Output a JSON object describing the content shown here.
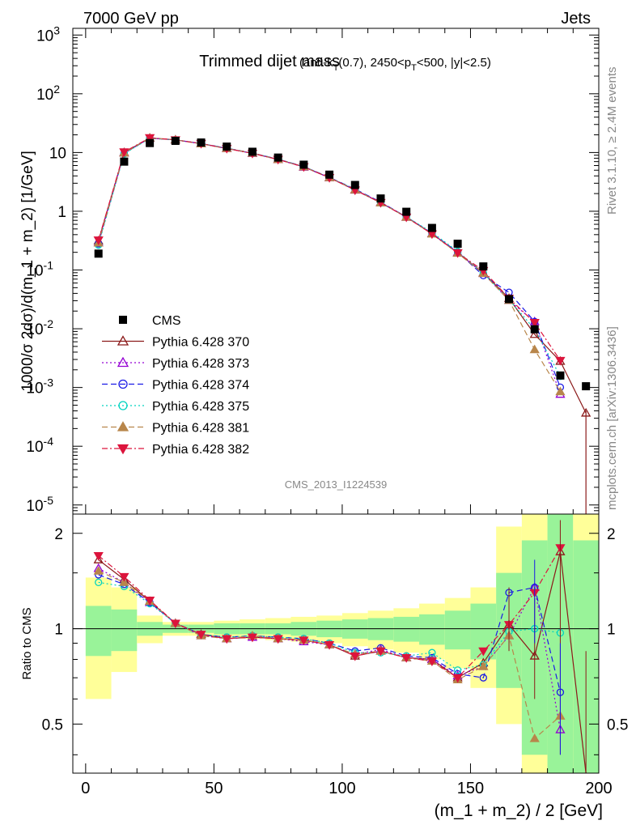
{
  "header": {
    "left": "7000 GeV pp",
    "right": "Jets",
    "side_top": "Rivet 3.1.10, ≥ 2.4M events",
    "side_bottom": "mcplots.cern.ch [arXiv:1306.3436]"
  },
  "chart_data": {
    "type": "line",
    "title_main": "Trimmed dijet mass",
    "title_sub": "(anti-kT(0.7), 2450<pT<500, |y|<2.5)",
    "watermark": "CMS_2013_I1224539",
    "xlabel": "(m_1 + m_2) / 2 [GeV]",
    "ylabel": "1000/σ 2dσ)/d(m_1 + m_2) [1/GeV]",
    "ratio_ylabel": "Ratio to CMS",
    "xlim": [
      -5,
      200
    ],
    "ylim": [
      7e-06,
      1300
    ],
    "ylog": true,
    "ratio_ylim": [
      0.35,
      2.3
    ],
    "x_ticks": [
      "0",
      "50",
      "100",
      "150",
      "200"
    ],
    "y_ticks": [
      "10^3",
      "10^2",
      "10",
      "1",
      "10^-1",
      "10^-2",
      "10^-3",
      "10^-4",
      "10^-5"
    ],
    "ratio_ticks": [
      "0.5",
      "1",
      "2"
    ],
    "legend_position": "left-middle",
    "x": [
      5,
      15,
      25,
      35,
      45,
      55,
      65,
      75,
      85,
      95,
      105,
      115,
      125,
      135,
      145,
      155,
      165,
      175,
      185,
      195
    ],
    "data": {
      "name": "CMS",
      "values": [
        0.19,
        7.0,
        14.5,
        15.8,
        14.8,
        12.6,
        10.3,
        8.2,
        6.2,
        4.2,
        2.8,
        1.65,
        0.98,
        0.52,
        0.28,
        0.115,
        0.032,
        0.0098,
        0.0016,
        0.00105
      ]
    },
    "band_inner": [
      [
        0.82,
        1.18
      ],
      [
        0.85,
        1.15
      ],
      [
        0.95,
        1.05
      ],
      [
        0.97,
        1.03
      ],
      [
        0.97,
        1.03
      ],
      [
        0.96,
        1.04
      ],
      [
        0.96,
        1.04
      ],
      [
        0.96,
        1.04
      ],
      [
        0.95,
        1.05
      ],
      [
        0.94,
        1.06
      ],
      [
        0.93,
        1.07
      ],
      [
        0.92,
        1.08
      ],
      [
        0.91,
        1.09
      ],
      [
        0.89,
        1.11
      ],
      [
        0.86,
        1.14
      ],
      [
        0.8,
        1.2
      ],
      [
        0.65,
        1.5
      ],
      [
        0.4,
        1.9
      ],
      [
        0.35,
        2.3
      ],
      [
        0.35,
        1.9
      ]
    ],
    "band_outer": [
      [
        0.6,
        1.45
      ],
      [
        0.73,
        1.35
      ],
      [
        0.9,
        1.1
      ],
      [
        0.95,
        1.05
      ],
      [
        0.95,
        1.05
      ],
      [
        0.94,
        1.06
      ],
      [
        0.93,
        1.07
      ],
      [
        0.92,
        1.08
      ],
      [
        0.91,
        1.09
      ],
      [
        0.9,
        1.1
      ],
      [
        0.88,
        1.12
      ],
      [
        0.86,
        1.14
      ],
      [
        0.84,
        1.16
      ],
      [
        0.8,
        1.2
      ],
      [
        0.75,
        1.25
      ],
      [
        0.65,
        1.35
      ],
      [
        0.5,
        2.1
      ],
      [
        0.35,
        2.3
      ],
      [
        0.35,
        2.3
      ],
      [
        0.35,
        2.3
      ]
    ],
    "series": [
      {
        "name": "Pythia 6.428 370",
        "color": "#8b1a1a",
        "dash": "",
        "marker": "tri-up-open",
        "ratio": [
          1.65,
          1.43,
          1.22,
          1.04,
          0.96,
          0.93,
          0.94,
          0.93,
          0.92,
          0.89,
          0.82,
          0.85,
          0.81,
          0.8,
          0.7,
          0.78,
          1.03,
          0.82,
          1.75,
          0.35
        ]
      },
      {
        "name": "Pythia 6.428 373",
        "color": "#9400d3",
        "dash": "2,3",
        "marker": "tri-up-open",
        "ratio": [
          1.55,
          1.4,
          1.21,
          1.04,
          0.95,
          0.93,
          0.94,
          0.93,
          0.91,
          0.89,
          0.83,
          0.86,
          0.81,
          0.8,
          0.71,
          0.76,
          0.95,
          1.35,
          0.48,
          null
        ]
      },
      {
        "name": "Pythia 6.428 374",
        "color": "#1a1ae6",
        "dash": "7,4",
        "marker": "circle-open",
        "ratio": [
          1.48,
          1.38,
          1.21,
          1.04,
          0.96,
          0.94,
          0.95,
          0.94,
          0.93,
          0.9,
          0.85,
          0.87,
          0.82,
          0.81,
          0.72,
          0.7,
          1.3,
          1.35,
          0.63,
          null
        ]
      },
      {
        "name": "Pythia 6.428 375",
        "color": "#00d3c0",
        "dash": "2,3",
        "marker": "circle-open",
        "ratio": [
          1.4,
          1.36,
          1.2,
          1.04,
          0.96,
          0.94,
          0.95,
          0.94,
          0.93,
          0.9,
          0.84,
          0.84,
          0.82,
          0.84,
          0.74,
          0.77,
          0.98,
          1.0,
          0.97,
          null
        ]
      },
      {
        "name": "Pythia 6.428 381",
        "color": "#b8864b",
        "dash": "7,4",
        "marker": "tri-up-filled",
        "ratio": [
          1.52,
          1.4,
          1.22,
          1.04,
          0.95,
          0.93,
          0.95,
          0.93,
          0.92,
          0.89,
          0.83,
          0.85,
          0.81,
          0.79,
          0.69,
          0.76,
          0.95,
          0.45,
          0.53,
          null
        ]
      },
      {
        "name": "Pythia 6.428 382",
        "color": "#dc143c",
        "dash": "7,3,2,3",
        "marker": "tri-down-filled",
        "ratio": [
          1.7,
          1.46,
          1.23,
          1.04,
          0.96,
          0.93,
          0.94,
          0.93,
          0.92,
          0.89,
          0.82,
          0.85,
          0.81,
          0.79,
          0.7,
          0.85,
          1.03,
          1.3,
          1.8,
          null
        ]
      }
    ]
  }
}
